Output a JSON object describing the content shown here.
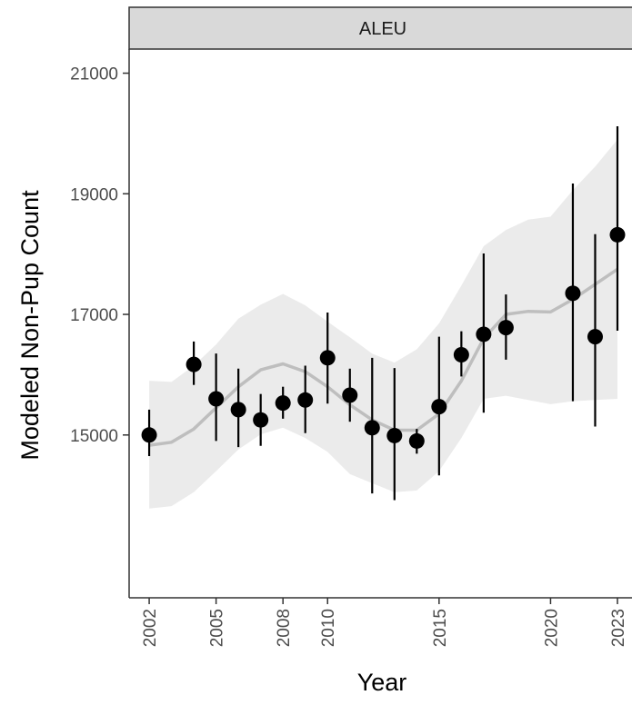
{
  "chart_data": {
    "type": "scatter",
    "facet_label": "ALEU",
    "xlabel": "Year",
    "ylabel": "Modeled Non-Pup Count",
    "xlim": [
      2001.1,
      2023.0
    ],
    "ylim": [
      12300,
      21400
    ],
    "x_ticks": [
      2002,
      2005,
      2008,
      2010,
      2015,
      2020,
      2023
    ],
    "y_ticks": [
      15000,
      17000,
      19000,
      21000
    ],
    "grid": false,
    "points": [
      {
        "year": 2002,
        "value": 15000,
        "lower": 14650,
        "upper": 15420
      },
      {
        "year": 2004,
        "value": 16170,
        "lower": 15830,
        "upper": 16550
      },
      {
        "year": 2005,
        "value": 15600,
        "lower": 14900,
        "upper": 16350
      },
      {
        "year": 2006,
        "value": 15420,
        "lower": 14800,
        "upper": 16100
      },
      {
        "year": 2007,
        "value": 15250,
        "lower": 14820,
        "upper": 15680
      },
      {
        "year": 2008,
        "value": 15530,
        "lower": 15270,
        "upper": 15800
      },
      {
        "year": 2009,
        "value": 15580,
        "lower": 15030,
        "upper": 16150
      },
      {
        "year": 2010,
        "value": 16280,
        "lower": 15520,
        "upper": 17030
      },
      {
        "year": 2011,
        "value": 15660,
        "lower": 15220,
        "upper": 16100
      },
      {
        "year": 2012,
        "value": 15120,
        "lower": 14030,
        "upper": 16280
      },
      {
        "year": 2013,
        "value": 14990,
        "lower": 13920,
        "upper": 16110
      },
      {
        "year": 2014,
        "value": 14900,
        "lower": 14690,
        "upper": 15100
      },
      {
        "year": 2015,
        "value": 15470,
        "lower": 14330,
        "upper": 16630
      },
      {
        "year": 2016,
        "value": 16330,
        "lower": 15970,
        "upper": 16720
      },
      {
        "year": 2017,
        "value": 16670,
        "lower": 15370,
        "upper": 18010
      },
      {
        "year": 2018,
        "value": 16780,
        "lower": 16250,
        "upper": 17330
      },
      {
        "year": 2021,
        "value": 17350,
        "lower": 15560,
        "upper": 19170
      },
      {
        "year": 2022,
        "value": 16630,
        "lower": 15140,
        "upper": 18330
      },
      {
        "year": 2023,
        "value": 18320,
        "lower": 16730,
        "upper": 20120
      }
    ],
    "trend": {
      "x": [
        2002,
        2003,
        2004,
        2005,
        2006,
        2007,
        2008,
        2009,
        2010,
        2011,
        2012,
        2013,
        2014,
        2015,
        2016,
        2017,
        2018,
        2019,
        2020,
        2021,
        2022,
        2023
      ],
      "mean": [
        14830,
        14880,
        15100,
        15450,
        15800,
        16080,
        16180,
        16050,
        15800,
        15500,
        15250,
        15080,
        15080,
        15350,
        15900,
        16600,
        17000,
        17050,
        17040,
        17250,
        17500,
        17750
      ],
      "lower": [
        13780,
        13820,
        14050,
        14400,
        14760,
        15010,
        15120,
        14950,
        14720,
        14350,
        14200,
        14050,
        14080,
        14400,
        14950,
        15600,
        15650,
        15580,
        15510,
        15560,
        15580,
        15600
      ],
      "upper": [
        15900,
        15880,
        16150,
        16500,
        16930,
        17160,
        17340,
        17150,
        16880,
        16620,
        16350,
        16200,
        16420,
        16850,
        17480,
        18130,
        18400,
        18570,
        18620,
        19060,
        19450,
        19900
      ]
    },
    "colors": {
      "ribbon": "#ebebeb",
      "trend_line": "#bebebe",
      "points": "#000000",
      "strip_fill": "#d9d9d9",
      "strip_border": "#333333"
    }
  }
}
